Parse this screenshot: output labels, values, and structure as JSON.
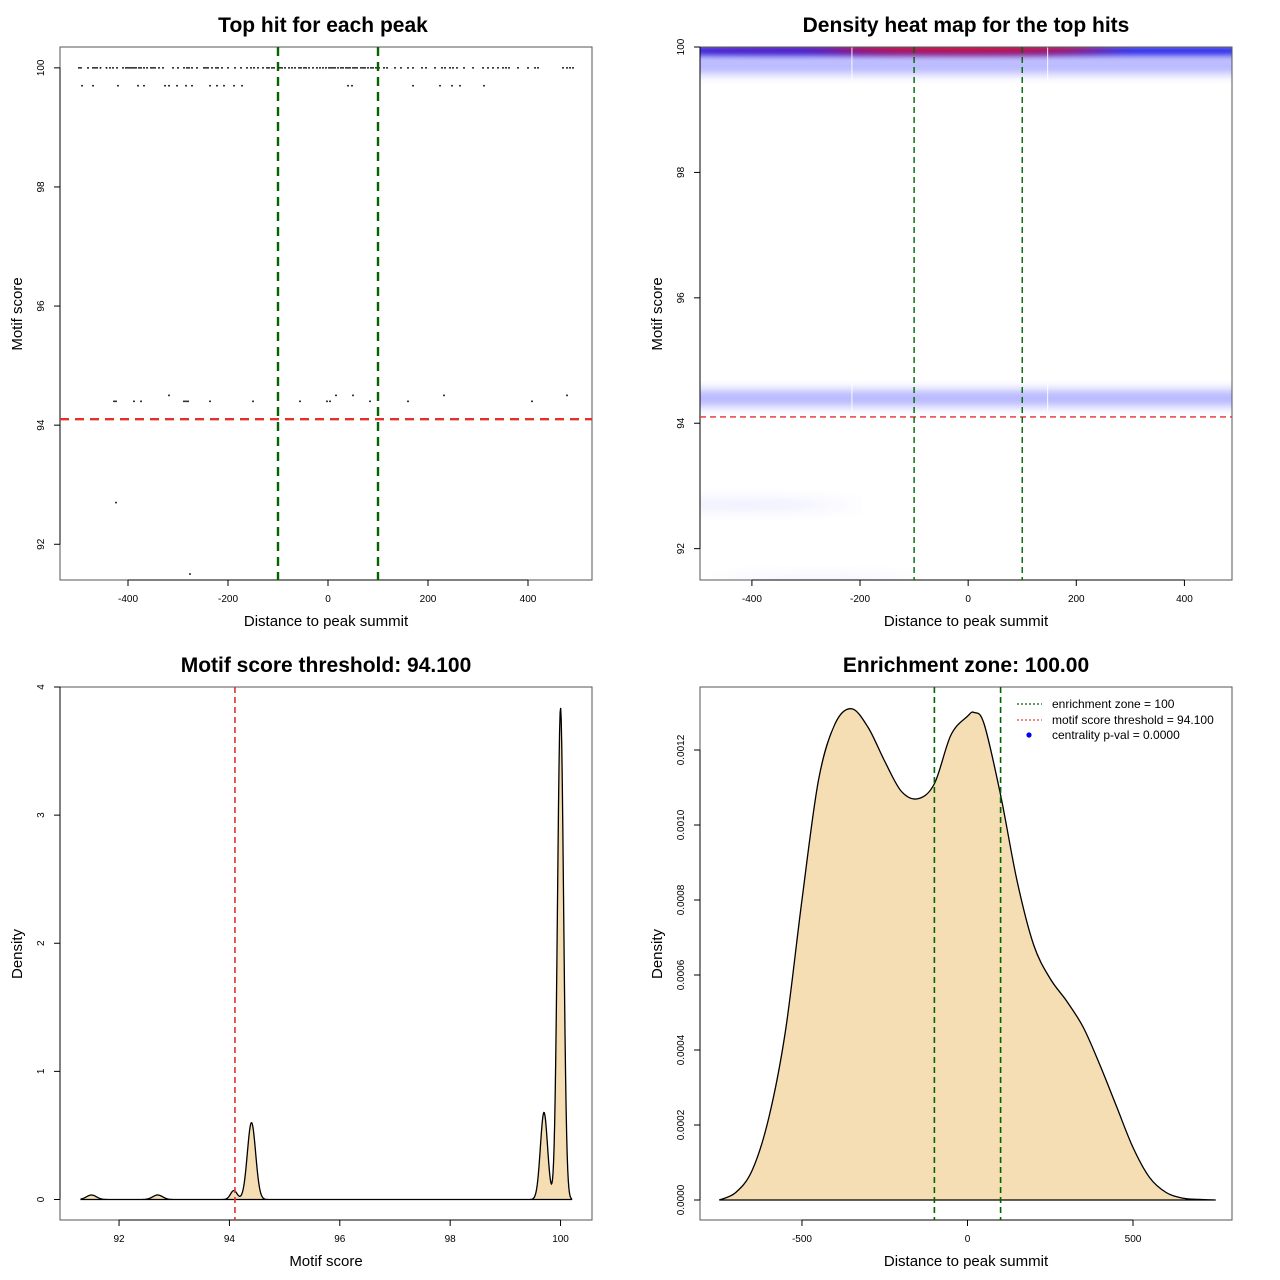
{
  "figure": {
    "layout": "2x2 grid"
  },
  "chart_data": [
    {
      "id": "top-hit",
      "type": "scatter",
      "title": "Top hit for each peak",
      "xlabel": "Distance to peak summit",
      "ylabel": "Motif score",
      "xlim": [
        -536,
        528
      ],
      "ylim": [
        91.4,
        100.35
      ],
      "xticks": [
        -400,
        -200,
        0,
        200,
        400
      ],
      "yticks": [
        92,
        94,
        96,
        98,
        100
      ],
      "grid": false,
      "vlines": [
        {
          "x": -100,
          "color": "#006400",
          "style": "dashed"
        },
        {
          "x": 100,
          "color": "#006400",
          "style": "dashed"
        }
      ],
      "hlines": [
        {
          "y": 94.1,
          "color": "#e03030",
          "style": "dashed"
        }
      ],
      "series": [
        {
          "name": "score-100",
          "y": 100,
          "x": [
            -498,
            -494,
            -480,
            -470,
            -466,
            -462,
            -455,
            -443,
            -436,
            -430,
            -422,
            -410,
            -404,
            -400,
            -396,
            -392,
            -388,
            -384,
            -378,
            -374,
            -368,
            -362,
            -354,
            -350,
            -346,
            -338,
            -330,
            -310,
            -300,
            -288,
            -282,
            -278,
            -272,
            -262,
            -248,
            -244,
            -240,
            -232,
            -224,
            -220,
            -212,
            -200,
            -186,
            -174,
            -162,
            -154,
            -148,
            -140,
            -130,
            -122,
            -118,
            -112,
            -108,
            -100,
            -96,
            -92,
            -86,
            -78,
            -72,
            -66,
            -58,
            -54,
            -48,
            -44,
            -38,
            -30,
            -22,
            -16,
            -10,
            -4,
            2,
            6,
            10,
            14,
            20,
            26,
            30,
            36,
            40,
            44,
            50,
            54,
            58,
            66,
            70,
            74,
            80,
            86,
            90,
            96,
            102,
            112,
            118,
            134,
            146,
            160,
            170,
            188,
            196,
            214,
            228,
            234,
            244,
            250,
            258,
            272,
            290,
            310,
            320,
            330,
            340,
            350,
            356,
            362,
            380,
            400,
            414,
            420,
            470,
            478,
            484,
            490
          ]
        },
        {
          "name": "score-99.7",
          "y": 99.7,
          "x": [
            -492,
            -470,
            -420,
            -380,
            -368,
            -326,
            -318,
            -302,
            -284,
            -272,
            -236,
            -222,
            -208,
            -188,
            -172,
            40,
            48,
            170,
            224,
            248,
            264,
            312
          ]
        },
        {
          "name": "score-94.5",
          "y": 94.5,
          "x": [
            -318,
            16,
            50,
            232,
            478
          ]
        },
        {
          "name": "score-94.4",
          "y": 94.4,
          "x": [
            -428,
            -424,
            -388,
            -374,
            -288,
            -284,
            -280,
            -236,
            -150,
            -56,
            -2,
            4,
            84,
            160,
            408
          ]
        },
        {
          "name": "score-92.7",
          "y": 92.7,
          "x": [
            -424
          ]
        },
        {
          "name": "score-91.5",
          "y": 91.5,
          "x": [
            -276
          ]
        }
      ]
    },
    {
      "id": "heatmap",
      "type": "heatmap",
      "title": "Density heat map for the top hits",
      "xlabel": "Distance to peak summit",
      "ylabel": "Motif score",
      "xlim": [
        -496,
        488
      ],
      "ylim": [
        91.5,
        100
      ],
      "xticks": [
        -400,
        -200,
        0,
        200,
        400
      ],
      "yticks": [
        92,
        94,
        96,
        98,
        100
      ],
      "grid": false,
      "colorscale": [
        "#ffffff",
        "#0000ff",
        "#ff0000"
      ],
      "vlines": [
        {
          "x": -100,
          "color": "#006400",
          "style": "dashed"
        },
        {
          "x": 100,
          "color": "#006400",
          "style": "dashed"
        }
      ],
      "hlines": [
        {
          "y": 94.1,
          "color": "#e03030",
          "style": "dashed"
        }
      ],
      "bands": [
        {
          "y": 99.95,
          "x_center": 0,
          "x_spread": 500,
          "intensity": 1.0,
          "label": "dense ridge at 100"
        },
        {
          "y": 99.7,
          "x_center": -300,
          "x_spread": 420,
          "intensity": 0.45,
          "label": "band at 99.7"
        },
        {
          "y": 94.4,
          "x_center": -300,
          "x_spread": 420,
          "intensity": 0.45,
          "label": "band at 94.4"
        },
        {
          "y": 92.7,
          "x_center": -420,
          "x_spread": 160,
          "intensity": 0.08,
          "label": "faint band at 92.7"
        },
        {
          "y": 91.5,
          "x_center": -280,
          "x_spread": 140,
          "intensity": 0.05,
          "label": "faint band at 91.5"
        }
      ]
    },
    {
      "id": "score-density",
      "type": "area",
      "title": "Motif score threshold: 94.100",
      "xlabel": "Motif score",
      "ylabel": "Density",
      "xlim": [
        90.93,
        100.57
      ],
      "ylim": [
        -0.16,
        4.0
      ],
      "xticks": [
        92,
        94,
        96,
        98,
        100
      ],
      "yticks": [
        0,
        1,
        2,
        3,
        4
      ],
      "grid": false,
      "fill": "#f5deb3",
      "vlines": [
        {
          "x": 94.1,
          "color": "#e03030",
          "style": "dashed"
        }
      ],
      "peaks": [
        {
          "x": 91.5,
          "height": 0.035,
          "sd": 0.09
        },
        {
          "x": 92.7,
          "height": 0.035,
          "sd": 0.09
        },
        {
          "x": 94.08,
          "height": 0.07,
          "sd": 0.06
        },
        {
          "x": 94.4,
          "height": 0.6,
          "sd": 0.075
        },
        {
          "x": 99.7,
          "height": 0.68,
          "sd": 0.065
        },
        {
          "x": 100.0,
          "height": 3.84,
          "sd": 0.055
        }
      ],
      "x_range_curve": [
        91.3,
        100.2
      ]
    },
    {
      "id": "enrichment",
      "type": "area",
      "title": "Enrichment zone: 100.00",
      "xlabel": "Distance to peak summit",
      "ylabel": "Density",
      "xlim": [
        -808,
        799
      ],
      "ylim": [
        -5.33e-05,
        0.001368
      ],
      "xticks": [
        -500,
        0,
        500
      ],
      "yticks": [
        0.0,
        0.0002,
        0.0004,
        0.0006,
        0.0008,
        0.001,
        0.0012
      ],
      "ytick_labels": [
        "0.0000",
        "0.0002",
        "0.0004",
        "0.0006",
        "0.0008",
        "0.0010",
        "0.0012"
      ],
      "grid": false,
      "fill": "#f5deb3",
      "vlines": [
        {
          "x": -100,
          "color": "#006400",
          "style": "dashed"
        },
        {
          "x": 100,
          "color": "#006400",
          "style": "dashed"
        }
      ],
      "curve": {
        "x": [
          -750,
          -700,
          -650,
          -600,
          -550,
          -500,
          -450,
          -400,
          -350,
          -300,
          -250,
          -200,
          -150,
          -100,
          -50,
          0,
          20,
          50,
          100,
          150,
          200,
          250,
          300,
          350,
          400,
          450,
          500,
          550,
          600,
          650,
          700,
          750
        ],
        "y": [
          0.0,
          2e-05,
          8e-05,
          0.00022,
          0.00045,
          0.0008,
          0.00112,
          0.00127,
          0.00131,
          0.00126,
          0.00117,
          0.00109,
          0.00107,
          0.00111,
          0.00124,
          0.00129,
          0.0013,
          0.00127,
          0.00108,
          0.00085,
          0.00068,
          0.00059,
          0.00053,
          0.00046,
          0.00036,
          0.00025,
          0.00014,
          6e-05,
          2e-05,
          5e-06,
          1.5e-06,
          0.0
        ]
      },
      "legend": {
        "position": "top-right",
        "entries": [
          {
            "label": "enrichment zone = 100",
            "color": "#006400",
            "symbol": "dotted-line"
          },
          {
            "label": "motif score threshold = 94.100",
            "color": "#ff4040",
            "symbol": "dotted-line"
          },
          {
            "label": "centrality p-val = 0.0000",
            "color": "#0000ff",
            "symbol": "dot"
          }
        ]
      }
    }
  ]
}
